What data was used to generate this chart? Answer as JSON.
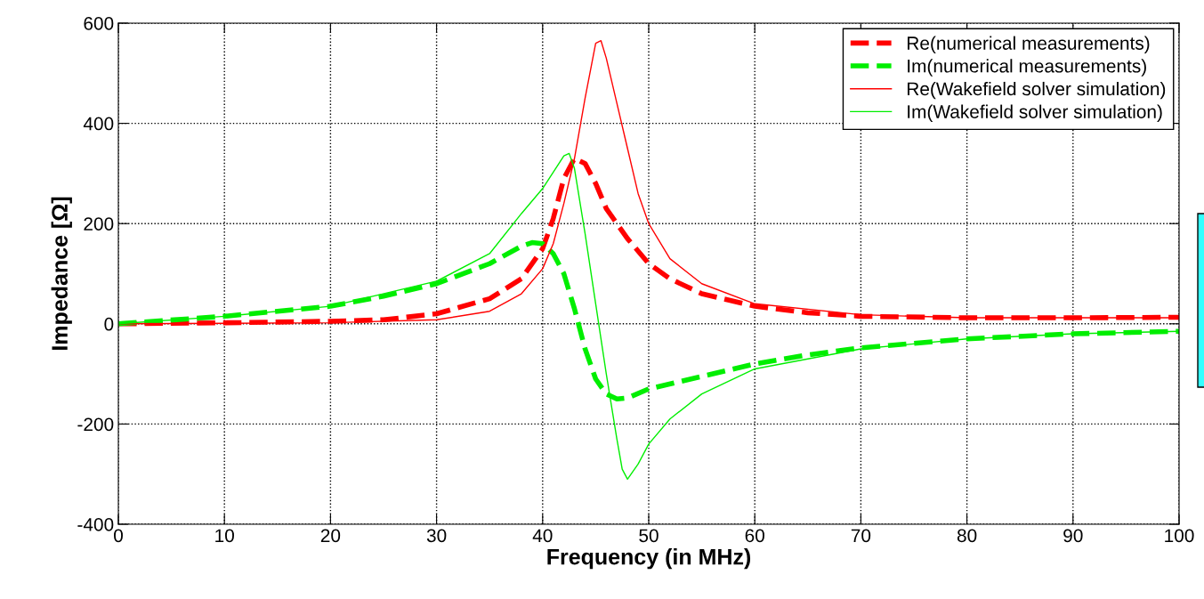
{
  "chart_data": {
    "type": "line",
    "xlabel": "Frequency (in MHz)",
    "ylabel": "Impedance [Ω]",
    "xlim": [
      0,
      100
    ],
    "xticks": [
      0,
      10,
      20,
      30,
      40,
      50,
      60,
      70,
      80,
      90,
      100
    ],
    "ylim": [
      -400,
      600
    ],
    "yticks": [
      -400,
      -200,
      0,
      200,
      400,
      600
    ],
    "grid": true,
    "legend": "top right",
    "series": [
      {
        "name": "Re(numerical measurements)",
        "color": "#ff0000",
        "line_style": "dashed",
        "x": [
          0,
          10,
          20,
          25,
          30,
          35,
          38,
          40,
          41,
          42,
          43,
          44,
          45,
          46,
          48,
          50,
          52,
          55,
          60,
          65,
          70,
          80,
          90,
          100
        ],
        "values": [
          0,
          2,
          5,
          8,
          20,
          50,
          90,
          150,
          210,
          290,
          330,
          320,
          280,
          230,
          170,
          120,
          90,
          60,
          35,
          22,
          15,
          12,
          12,
          13
        ]
      },
      {
        "name": "Im(numerical measurements)",
        "color": "#00ee00",
        "line_style": "dashed",
        "x": [
          0,
          10,
          20,
          25,
          30,
          35,
          38,
          39,
          40,
          41,
          42,
          43,
          44,
          45,
          46,
          47,
          48,
          50,
          55,
          60,
          65,
          70,
          80,
          90,
          100
        ],
        "values": [
          0,
          15,
          35,
          55,
          80,
          120,
          155,
          162,
          160,
          140,
          100,
          30,
          -50,
          -110,
          -140,
          -150,
          -148,
          -130,
          -105,
          -80,
          -62,
          -48,
          -30,
          -20,
          -15
        ]
      },
      {
        "name": "Re(Wakefield solver simulation)",
        "color": "#ff0000",
        "line_style": "solid",
        "x": [
          0,
          20,
          30,
          35,
          38,
          40,
          41,
          42,
          43,
          44,
          45,
          45.5,
          46,
          47,
          48,
          49,
          50,
          52,
          55,
          60,
          70,
          80,
          100
        ],
        "values": [
          0,
          2,
          8,
          25,
          60,
          110,
          160,
          240,
          330,
          450,
          560,
          565,
          530,
          440,
          350,
          260,
          200,
          130,
          80,
          40,
          18,
          12,
          12
        ]
      },
      {
        "name": "Im(Wakefield solver simulation)",
        "color": "#00ee00",
        "line_style": "solid",
        "x": [
          0,
          10,
          20,
          30,
          35,
          38,
          40,
          42,
          42.5,
          43,
          44,
          45,
          46,
          47,
          47.5,
          48,
          49,
          50,
          52,
          55,
          60,
          70,
          80,
          90,
          100
        ],
        "values": [
          0,
          15,
          35,
          85,
          140,
          220,
          270,
          335,
          340,
          310,
          180,
          40,
          -100,
          -230,
          -290,
          -310,
          -280,
          -240,
          -190,
          -140,
          -90,
          -50,
          -30,
          -20,
          -15
        ]
      }
    ]
  }
}
